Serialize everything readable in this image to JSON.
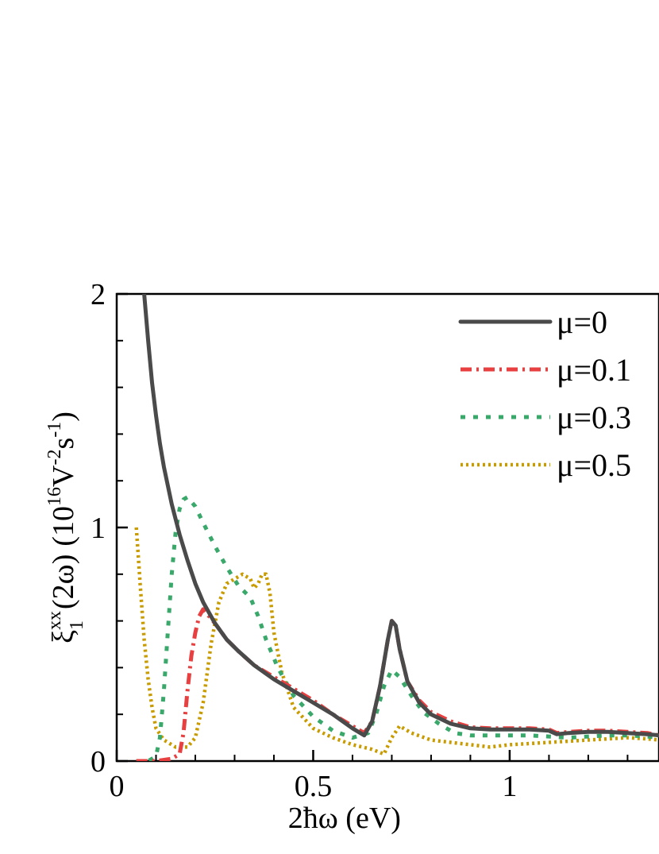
{
  "chart_data": {
    "type": "line",
    "title": "",
    "xlabel": "2ħω (eV)",
    "ylabel": {
      "symbol": "ξ",
      "superscript": "xx",
      "subscript": "1",
      "argument": "(2ω)",
      "unit_prefix": "(10",
      "unit_exp": "16",
      "unit_mid": "V",
      "unit_exp2": "-2",
      "unit_mid2": "s",
      "unit_exp3": "-1",
      "unit_close": ")"
    },
    "xlim": [
      0,
      1.38
    ],
    "ylim": [
      0,
      2
    ],
    "xticks": [
      0,
      0.5,
      1
    ],
    "xtick_labels": [
      "0",
      "0.5",
      "1"
    ],
    "yticks": [
      0,
      1,
      2
    ],
    "ytick_labels": [
      "0",
      "1",
      "2"
    ],
    "grid": false,
    "legend_position": "top-right",
    "series": [
      {
        "name": "μ=0",
        "color": "#4a4a4a",
        "style": "solid",
        "x": [
          0.07,
          0.08,
          0.09,
          0.1,
          0.11,
          0.12,
          0.14,
          0.16,
          0.18,
          0.2,
          0.22,
          0.25,
          0.28,
          0.31,
          0.35,
          0.4,
          0.45,
          0.5,
          0.55,
          0.6,
          0.63,
          0.65,
          0.67,
          0.69,
          0.7,
          0.71,
          0.72,
          0.74,
          0.77,
          0.8,
          0.85,
          0.9,
          0.95,
          1.0,
          1.05,
          1.1,
          1.12,
          1.15,
          1.2,
          1.25,
          1.3,
          1.35,
          1.38
        ],
        "y": [
          2.0,
          1.8,
          1.62,
          1.48,
          1.36,
          1.26,
          1.1,
          0.97,
          0.86,
          0.76,
          0.68,
          0.59,
          0.52,
          0.47,
          0.41,
          0.35,
          0.3,
          0.25,
          0.2,
          0.14,
          0.11,
          0.17,
          0.32,
          0.52,
          0.6,
          0.58,
          0.48,
          0.34,
          0.25,
          0.2,
          0.16,
          0.14,
          0.135,
          0.135,
          0.135,
          0.13,
          0.115,
          0.12,
          0.125,
          0.125,
          0.12,
          0.115,
          0.11
        ]
      },
      {
        "name": "μ=0.1",
        "color": "#e84040",
        "style": "dashdot",
        "x": [
          0.05,
          0.1,
          0.14,
          0.16,
          0.17,
          0.18,
          0.19,
          0.2,
          0.21,
          0.22,
          0.25,
          0.28,
          0.31,
          0.35,
          0.4,
          0.45,
          0.5,
          0.55,
          0.6,
          0.63,
          0.65,
          0.67,
          0.69,
          0.7,
          0.71,
          0.72,
          0.74,
          0.77,
          0.8,
          0.85,
          0.9,
          0.95,
          1.0,
          1.05,
          1.1,
          1.12,
          1.15,
          1.2,
          1.25,
          1.3,
          1.35,
          1.38
        ],
        "y": [
          0.0,
          0.0,
          0.01,
          0.03,
          0.12,
          0.3,
          0.45,
          0.55,
          0.62,
          0.65,
          0.59,
          0.52,
          0.47,
          0.41,
          0.36,
          0.31,
          0.26,
          0.2,
          0.15,
          0.12,
          0.17,
          0.32,
          0.52,
          0.6,
          0.58,
          0.48,
          0.34,
          0.26,
          0.21,
          0.17,
          0.145,
          0.14,
          0.14,
          0.14,
          0.135,
          0.12,
          0.125,
          0.13,
          0.13,
          0.125,
          0.12,
          0.11
        ]
      },
      {
        "name": "μ=0.3",
        "color": "#3aa86a",
        "style": "dotted",
        "x": [
          0.05,
          0.08,
          0.1,
          0.11,
          0.12,
          0.13,
          0.14,
          0.15,
          0.16,
          0.17,
          0.18,
          0.2,
          0.22,
          0.25,
          0.28,
          0.31,
          0.34,
          0.36,
          0.38,
          0.41,
          0.45,
          0.5,
          0.55,
          0.6,
          0.64,
          0.66,
          0.68,
          0.7,
          0.72,
          0.75,
          0.78,
          0.82,
          0.86,
          0.9,
          0.95,
          1.0,
          1.05,
          1.1,
          1.15,
          1.2,
          1.25,
          1.3,
          1.35,
          1.38
        ],
        "y": [
          0.0,
          0.0,
          0.02,
          0.1,
          0.3,
          0.55,
          0.8,
          0.98,
          1.08,
          1.12,
          1.13,
          1.09,
          1.02,
          0.92,
          0.83,
          0.75,
          0.7,
          0.62,
          0.52,
          0.4,
          0.28,
          0.19,
          0.13,
          0.1,
          0.12,
          0.2,
          0.32,
          0.39,
          0.36,
          0.28,
          0.21,
          0.16,
          0.12,
          0.11,
          0.11,
          0.11,
          0.11,
          0.105,
          0.1,
          0.105,
          0.11,
          0.11,
          0.105,
          0.1
        ]
      },
      {
        "name": "μ=0.5",
        "color": "#c89b00",
        "style": "dotted-fine",
        "x": [
          0.05,
          0.06,
          0.07,
          0.08,
          0.09,
          0.1,
          0.12,
          0.15,
          0.18,
          0.2,
          0.22,
          0.24,
          0.26,
          0.28,
          0.3,
          0.32,
          0.34,
          0.35,
          0.36,
          0.37,
          0.38,
          0.39,
          0.4,
          0.42,
          0.45,
          0.5,
          0.55,
          0.6,
          0.65,
          0.68,
          0.7,
          0.72,
          0.75,
          0.8,
          0.85,
          0.9,
          0.95,
          1.0,
          1.05,
          1.1,
          1.15,
          1.2,
          1.25,
          1.3,
          1.35,
          1.38
        ],
        "y": [
          1.0,
          0.75,
          0.52,
          0.35,
          0.23,
          0.14,
          0.09,
          0.06,
          0.06,
          0.1,
          0.25,
          0.5,
          0.68,
          0.76,
          0.78,
          0.8,
          0.78,
          0.74,
          0.76,
          0.8,
          0.8,
          0.72,
          0.55,
          0.38,
          0.23,
          0.14,
          0.1,
          0.07,
          0.05,
          0.03,
          0.1,
          0.15,
          0.12,
          0.09,
          0.08,
          0.07,
          0.06,
          0.07,
          0.075,
          0.08,
          0.085,
          0.09,
          0.095,
          0.1,
          0.095,
          0.09
        ]
      }
    ]
  }
}
